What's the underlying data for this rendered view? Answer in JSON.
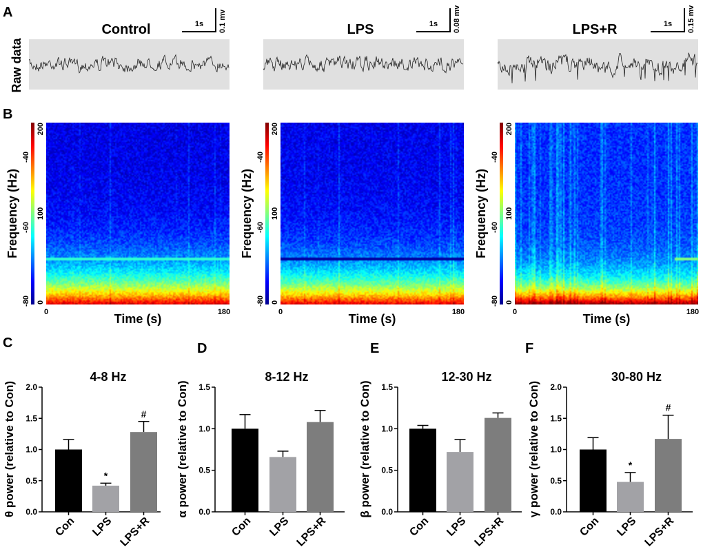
{
  "panel_labels": {
    "A": "A",
    "B": "B",
    "C": "C",
    "D": "D",
    "E": "E",
    "F": "F"
  },
  "raw_data_label": "Raw data",
  "groups": [
    {
      "title": "Control",
      "time_scale": "1s",
      "volt_scale": "0.1 mv"
    },
    {
      "title": "LPS",
      "time_scale": "1s",
      "volt_scale": "0.08 mv"
    },
    {
      "title": "LPS+R",
      "time_scale": "1s",
      "volt_scale": "0.15 mv"
    }
  ],
  "spectrogram": {
    "ylabel": "Frequency (Hz)",
    "xlabel": "Time (s)",
    "x_ticks": [
      "0",
      "180"
    ],
    "y_ticks": [
      "0",
      "100",
      "200"
    ],
    "colorbar_ticks": [
      "-80",
      "-60",
      "-40"
    ]
  },
  "colors": {
    "con": "#000000",
    "lps": "#a2a2a6",
    "lpsr": "#7d7d7d"
  },
  "chart_data": [
    {
      "type": "bar",
      "panel": "C",
      "title": "4-8 Hz",
      "ylabel": "θ power (relative to Con)",
      "categories": [
        "Con",
        "LPS",
        "LPS+R"
      ],
      "values": [
        1.0,
        0.42,
        1.28
      ],
      "errors": [
        0.16,
        0.04,
        0.17
      ],
      "annotations": [
        "",
        "*",
        "#"
      ],
      "ylim": [
        0,
        2.0
      ],
      "yticks": [
        "0.0",
        "0.5",
        "1.0",
        "1.5",
        "2.0"
      ]
    },
    {
      "type": "bar",
      "panel": "D",
      "title": "8-12 Hz",
      "ylabel": "α power (relative to Con)",
      "categories": [
        "Con",
        "LPS",
        "LPS+R"
      ],
      "values": [
        1.0,
        0.66,
        1.08
      ],
      "errors": [
        0.17,
        0.07,
        0.14
      ],
      "annotations": [
        "",
        "",
        ""
      ],
      "ylim": [
        0,
        1.5
      ],
      "yticks": [
        "0.0",
        "0.5",
        "1.0",
        "1.5"
      ]
    },
    {
      "type": "bar",
      "panel": "E",
      "title": "12-30 Hz",
      "ylabel": "β power (relative to Con)",
      "categories": [
        "Con",
        "LPS",
        "LPS+R"
      ],
      "values": [
        1.0,
        0.72,
        1.13
      ],
      "errors": [
        0.04,
        0.15,
        0.06
      ],
      "annotations": [
        "",
        "",
        ""
      ],
      "ylim": [
        0,
        1.5
      ],
      "yticks": [
        "0.0",
        "0.5",
        "1.0",
        "1.5"
      ]
    },
    {
      "type": "bar",
      "panel": "F",
      "title": "30-80 Hz",
      "ylabel": "γ power (relative to Con)",
      "categories": [
        "Con",
        "LPS",
        "LPS+R"
      ],
      "values": [
        1.0,
        0.48,
        1.17
      ],
      "errors": [
        0.19,
        0.15,
        0.38
      ],
      "annotations": [
        "",
        "*",
        "#"
      ],
      "ylim": [
        0,
        2.0
      ],
      "yticks": [
        "0.0",
        "0.5",
        "1.0",
        "1.5",
        "2.0"
      ]
    }
  ]
}
